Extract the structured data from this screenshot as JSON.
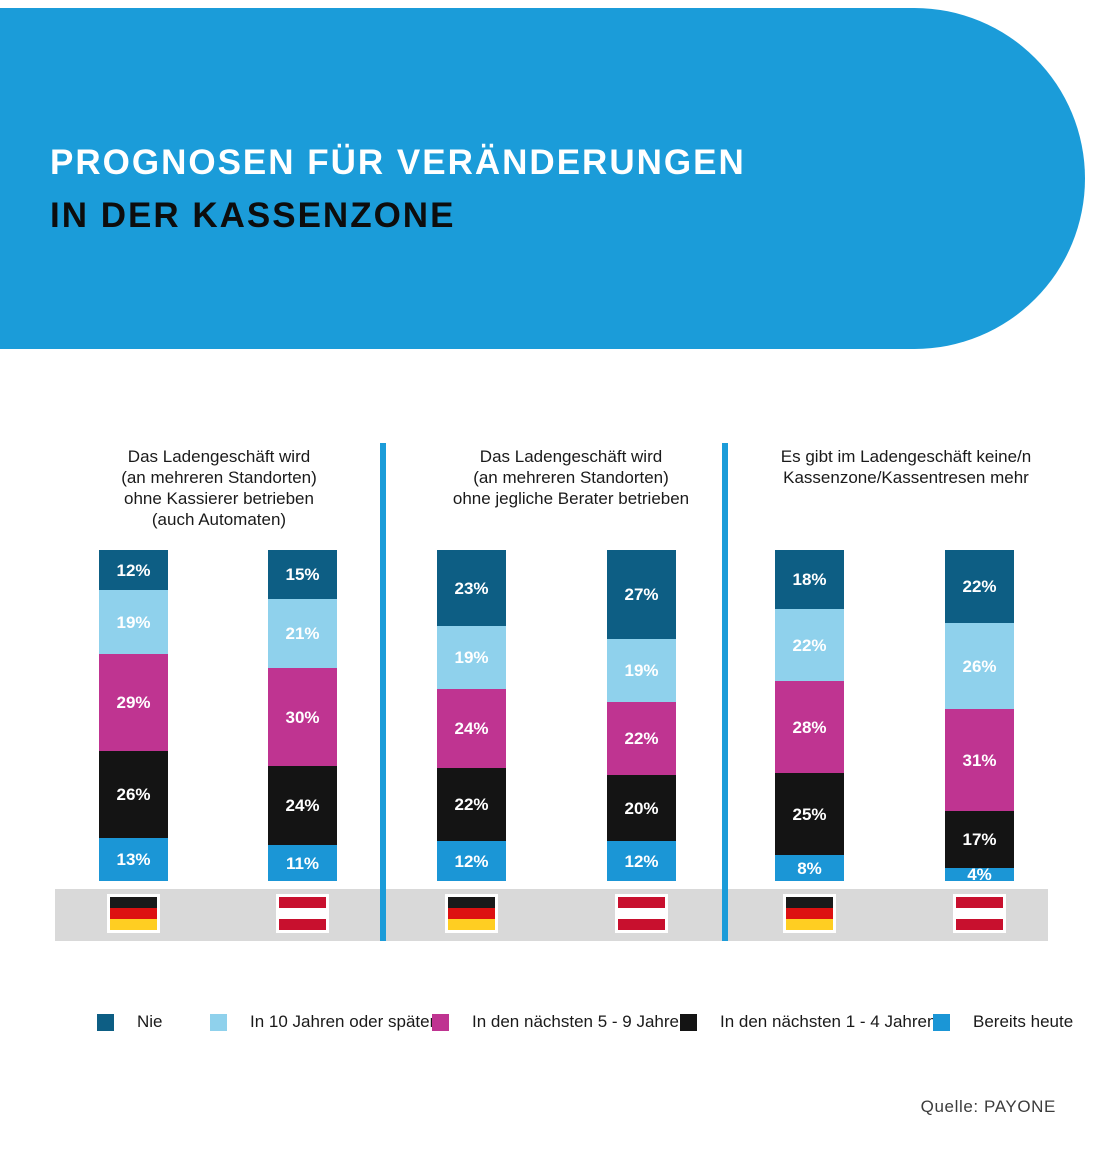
{
  "header": {
    "title_line1": "PROGNOSEN FÜR VERÄNDERUNGEN",
    "title_line2": "IN DER KASSENZONE"
  },
  "source": "Quelle: PAYONE",
  "colors": {
    "header_bg": "#1b9cd9",
    "divider": "#1b9cd9",
    "gray_band": "#d9d9d9",
    "label_text": "#1a1a1a"
  },
  "flags": {
    "germany": [
      "#1a1a1a",
      "#dd1111",
      "#ffce22"
    ],
    "austria": [
      "#c8102e",
      "#ffffff",
      "#c8102e"
    ]
  },
  "chart_data": {
    "type": "bar",
    "stacked": true,
    "orientation": "vertical",
    "unit": "%",
    "ylim": [
      0,
      100
    ],
    "grid": false,
    "legend_position": "bottom",
    "series": [
      {
        "name": "Nie",
        "color": "#0d5e84"
      },
      {
        "name": "In 10 Jahren oder später",
        "color": "#8fd1ec"
      },
      {
        "name": "In den nächsten 5 - 9 Jahren",
        "color": "#bf3491"
      },
      {
        "name": "In den nächsten 1 - 4 Jahren",
        "color": "#141414"
      },
      {
        "name": "Bereits heute",
        "color": "#1b96d6"
      }
    ],
    "groups": [
      {
        "question_lines": [
          "Das Ladengeschäft wird",
          "(an mehreren Standorten)",
          "ohne Kassierer betrieben",
          "(auch Automaten)"
        ],
        "bars": [
          {
            "country": "germany",
            "values": [
              12,
              19,
              29,
              26,
              13
            ]
          },
          {
            "country": "austria",
            "values": [
              15,
              21,
              30,
              24,
              11
            ]
          }
        ]
      },
      {
        "question_lines": [
          "Das Ladengeschäft wird",
          "(an mehreren Standorten)",
          "ohne jegliche Berater betrieben"
        ],
        "bars": [
          {
            "country": "germany",
            "values": [
              23,
              19,
              24,
              22,
              12
            ]
          },
          {
            "country": "austria",
            "values": [
              27,
              19,
              22,
              20,
              12
            ]
          }
        ]
      },
      {
        "question_lines": [
          "Es gibt im Ladengeschäft keine/n",
          "Kassenzone/Kassentresen mehr"
        ],
        "bars": [
          {
            "country": "germany",
            "values": [
              18,
              22,
              28,
              25,
              8
            ]
          },
          {
            "country": "austria",
            "values": [
              22,
              26,
              31,
              17,
              4
            ]
          }
        ]
      }
    ]
  }
}
